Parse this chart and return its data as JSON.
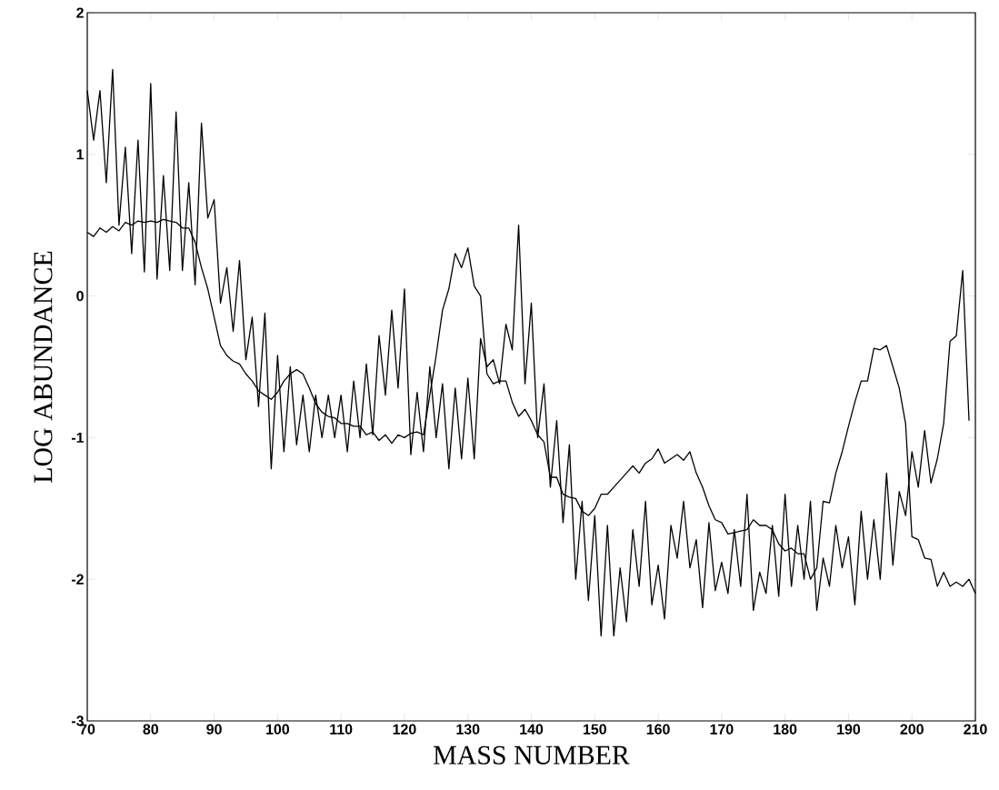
{
  "chart_data": {
    "type": "line",
    "xlabel": "MASS NUMBER",
    "ylabel": "LOG ABUNDANCE",
    "xlim": [
      70,
      210
    ],
    "ylim": [
      -3,
      2
    ],
    "xticks": [
      70,
      80,
      90,
      100,
      110,
      120,
      130,
      140,
      150,
      160,
      170,
      180,
      190,
      200,
      210
    ],
    "yticks": [
      -3,
      -2,
      -1,
      0,
      1,
      2
    ],
    "grid": false,
    "marker": "none",
    "line_style": "solid",
    "series": [
      {
        "color": "#000000",
        "x": [
          70,
          71,
          72,
          73,
          74,
          75,
          76,
          77,
          78,
          79,
          80,
          81,
          82,
          83,
          84,
          85,
          86,
          87,
          88,
          89,
          90,
          91,
          92,
          93,
          94,
          95,
          96,
          97,
          98,
          99,
          100,
          101,
          102,
          103,
          104,
          105,
          106,
          107,
          108,
          109,
          110,
          111,
          112,
          113,
          114,
          115,
          116,
          117,
          118,
          119,
          120,
          121,
          122,
          123,
          124,
          125,
          126,
          127,
          128,
          129,
          130,
          131,
          132,
          133,
          134,
          135,
          136,
          137,
          138,
          139,
          140,
          141,
          142,
          143,
          144,
          145,
          146,
          147,
          148,
          149,
          150,
          151,
          152,
          153,
          154,
          155,
          156,
          157,
          158,
          159,
          160,
          161,
          162,
          163,
          164,
          165,
          166,
          167,
          168,
          169,
          170,
          171,
          172,
          173,
          174,
          175,
          176,
          177,
          178,
          179,
          180,
          181,
          182,
          183,
          184,
          185,
          186,
          187,
          188,
          189,
          190,
          191,
          192,
          193,
          194,
          195,
          196,
          197,
          198,
          199,
          200,
          201,
          202,
          203,
          204,
          205,
          206,
          207,
          208,
          209
        ],
        "values": [
          1.45,
          1.1,
          1.45,
          0.8,
          1.6,
          0.5,
          1.05,
          0.3,
          1.1,
          0.17,
          1.5,
          0.12,
          0.85,
          0.18,
          1.3,
          0.18,
          0.8,
          0.08,
          1.22,
          0.55,
          0.68,
          -0.05,
          0.2,
          -0.25,
          0.25,
          -0.45,
          -0.15,
          -0.78,
          -0.12,
          -1.22,
          -0.42,
          -1.1,
          -0.5,
          -1.05,
          -0.7,
          -1.1,
          -0.7,
          -1.0,
          -0.7,
          -1.0,
          -0.7,
          -1.1,
          -0.6,
          -1.0,
          -0.48,
          -0.98,
          -0.28,
          -0.7,
          -0.1,
          -0.65,
          0.05,
          -1.12,
          -0.68,
          -1.1,
          -0.5,
          -1.0,
          -0.62,
          -1.22,
          -0.65,
          -1.15,
          -0.58,
          -1.15,
          -0.3,
          -0.5,
          -0.45,
          -0.62,
          -0.2,
          -0.38,
          0.5,
          -0.62,
          -0.05,
          -1.0,
          -0.62,
          -1.35,
          -0.88,
          -1.6,
          -1.05,
          -2.0,
          -1.45,
          -2.15,
          -1.55,
          -2.4,
          -1.62,
          -2.4,
          -1.92,
          -2.3,
          -1.65,
          -2.05,
          -1.45,
          -2.18,
          -1.9,
          -2.28,
          -1.62,
          -1.85,
          -1.45,
          -1.92,
          -1.72,
          -2.2,
          -1.6,
          -2.08,
          -1.88,
          -2.1,
          -1.65,
          -2.05,
          -1.4,
          -2.22,
          -1.95,
          -2.1,
          -1.62,
          -2.12,
          -1.4,
          -2.05,
          -1.62,
          -2.0,
          -1.45,
          -2.22,
          -1.85,
          -2.05,
          -1.62,
          -1.92,
          -1.7,
          -2.18,
          -1.52,
          -2.0,
          -1.58,
          -2.0,
          -1.25,
          -1.9,
          -1.38,
          -1.55,
          -1.1,
          -1.35,
          -0.95,
          -1.32,
          -1.15,
          -0.9,
          -0.32,
          -0.28,
          0.18,
          -0.88
        ]
      },
      {
        "color": "#000000",
        "x": [
          70,
          71,
          72,
          73,
          74,
          75,
          76,
          77,
          78,
          79,
          80,
          81,
          82,
          83,
          84,
          85,
          86,
          87,
          88,
          89,
          90,
          91,
          92,
          93,
          94,
          95,
          96,
          97,
          98,
          99,
          100,
          101,
          102,
          103,
          104,
          105,
          106,
          107,
          108,
          109,
          110,
          111,
          112,
          113,
          114,
          115,
          116,
          117,
          118,
          119,
          120,
          121,
          122,
          123,
          124,
          125,
          126,
          127,
          128,
          129,
          130,
          131,
          132,
          133,
          134,
          135,
          136,
          137,
          138,
          139,
          140,
          141,
          142,
          143,
          144,
          145,
          146,
          147,
          148,
          149,
          150,
          151,
          152,
          153,
          154,
          155,
          156,
          157,
          158,
          159,
          160,
          161,
          162,
          163,
          164,
          165,
          166,
          167,
          168,
          169,
          170,
          171,
          172,
          173,
          174,
          175,
          176,
          177,
          178,
          179,
          180,
          181,
          182,
          183,
          184,
          185,
          186,
          187,
          188,
          189,
          190,
          191,
          192,
          193,
          194,
          195,
          196,
          197,
          198,
          199,
          200,
          201,
          202,
          203,
          204,
          205,
          206,
          207,
          208,
          209,
          210
        ],
        "values": [
          0.45,
          0.42,
          0.48,
          0.45,
          0.49,
          0.46,
          0.52,
          0.5,
          0.53,
          0.52,
          0.53,
          0.52,
          0.54,
          0.53,
          0.52,
          0.48,
          0.48,
          0.38,
          0.2,
          0.05,
          -0.15,
          -0.35,
          -0.42,
          -0.46,
          -0.48,
          -0.55,
          -0.6,
          -0.67,
          -0.7,
          -0.73,
          -0.68,
          -0.6,
          -0.55,
          -0.52,
          -0.55,
          -0.65,
          -0.76,
          -0.82,
          -0.85,
          -0.86,
          -0.9,
          -0.9,
          -0.92,
          -0.92,
          -0.98,
          -0.96,
          -1.02,
          -0.98,
          -1.04,
          -0.98,
          -1.0,
          -0.97,
          -0.96,
          -0.98,
          -0.7,
          -0.42,
          -0.1,
          0.05,
          0.3,
          0.2,
          0.34,
          0.07,
          0.0,
          -0.55,
          -0.62,
          -0.6,
          -0.6,
          -0.75,
          -0.85,
          -0.8,
          -0.88,
          -0.98,
          -1.03,
          -1.28,
          -1.28,
          -1.4,
          -1.42,
          -1.43,
          -1.52,
          -1.55,
          -1.5,
          -1.4,
          -1.4,
          -1.35,
          -1.3,
          -1.25,
          -1.2,
          -1.25,
          -1.18,
          -1.15,
          -1.08,
          -1.18,
          -1.15,
          -1.12,
          -1.16,
          -1.1,
          -1.25,
          -1.35,
          -1.48,
          -1.58,
          -1.6,
          -1.68,
          -1.67,
          -1.66,
          -1.65,
          -1.58,
          -1.62,
          -1.62,
          -1.65,
          -1.75,
          -1.8,
          -1.78,
          -1.82,
          -1.82,
          -2.0,
          -1.92,
          -1.45,
          -1.46,
          -1.25,
          -1.1,
          -0.92,
          -0.75,
          -0.6,
          -0.6,
          -0.37,
          -0.38,
          -0.35,
          -0.5,
          -0.65,
          -0.9,
          -1.7,
          -1.72,
          -1.85,
          -1.86,
          -2.05,
          -1.95,
          -2.05,
          -2.02,
          -2.05,
          -2.0,
          -2.1
        ]
      }
    ]
  }
}
